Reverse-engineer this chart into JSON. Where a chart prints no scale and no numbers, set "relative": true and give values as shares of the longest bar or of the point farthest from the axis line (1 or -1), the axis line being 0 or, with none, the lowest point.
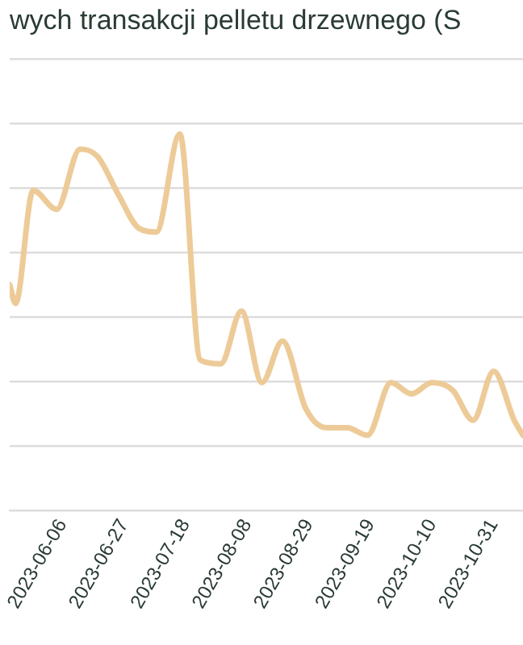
{
  "chart_data": {
    "type": "line",
    "title": "wych transakcji pelletu drzewnego (S",
    "relative": true,
    "color": "#edcb98",
    "grid": "y",
    "legend": false,
    "marker": "none",
    "line_style": "solid",
    "x": [
      "2023-05-19",
      "2023-05-21",
      "2023-05-27",
      "2023-06-04",
      "2023-06-12",
      "2023-06-18",
      "2023-06-25",
      "2023-07-02",
      "2023-07-08",
      "2023-07-16",
      "2023-07-23",
      "2023-07-30",
      "2023-08-06",
      "2023-08-13",
      "2023-08-20",
      "2023-08-28",
      "2023-09-04",
      "2023-09-11",
      "2023-09-18",
      "2023-09-26",
      "2023-10-03",
      "2023-10-10",
      "2023-10-17",
      "2023-10-24",
      "2023-10-31",
      "2023-11-07",
      "2023-11-10"
    ],
    "values": [
      0.6,
      0.55,
      0.85,
      0.8,
      0.96,
      0.94,
      0.84,
      0.75,
      0.74,
      1,
      0.4,
      0.39,
      0.53,
      0.34,
      0.45,
      0.27,
      0.22,
      0.22,
      0.2,
      0.34,
      0.31,
      0.34,
      0.32,
      0.24,
      0.37,
      0.24,
      0.2
    ],
    "xlim": [
      "2023-05-19",
      "2023-11-10"
    ],
    "xticks": [
      "2023-06-06",
      "2023-06-27",
      "2023-07-18",
      "2023-08-08",
      "2023-08-29",
      "2023-09-19",
      "2023-10-10",
      "2023-10-31"
    ]
  }
}
